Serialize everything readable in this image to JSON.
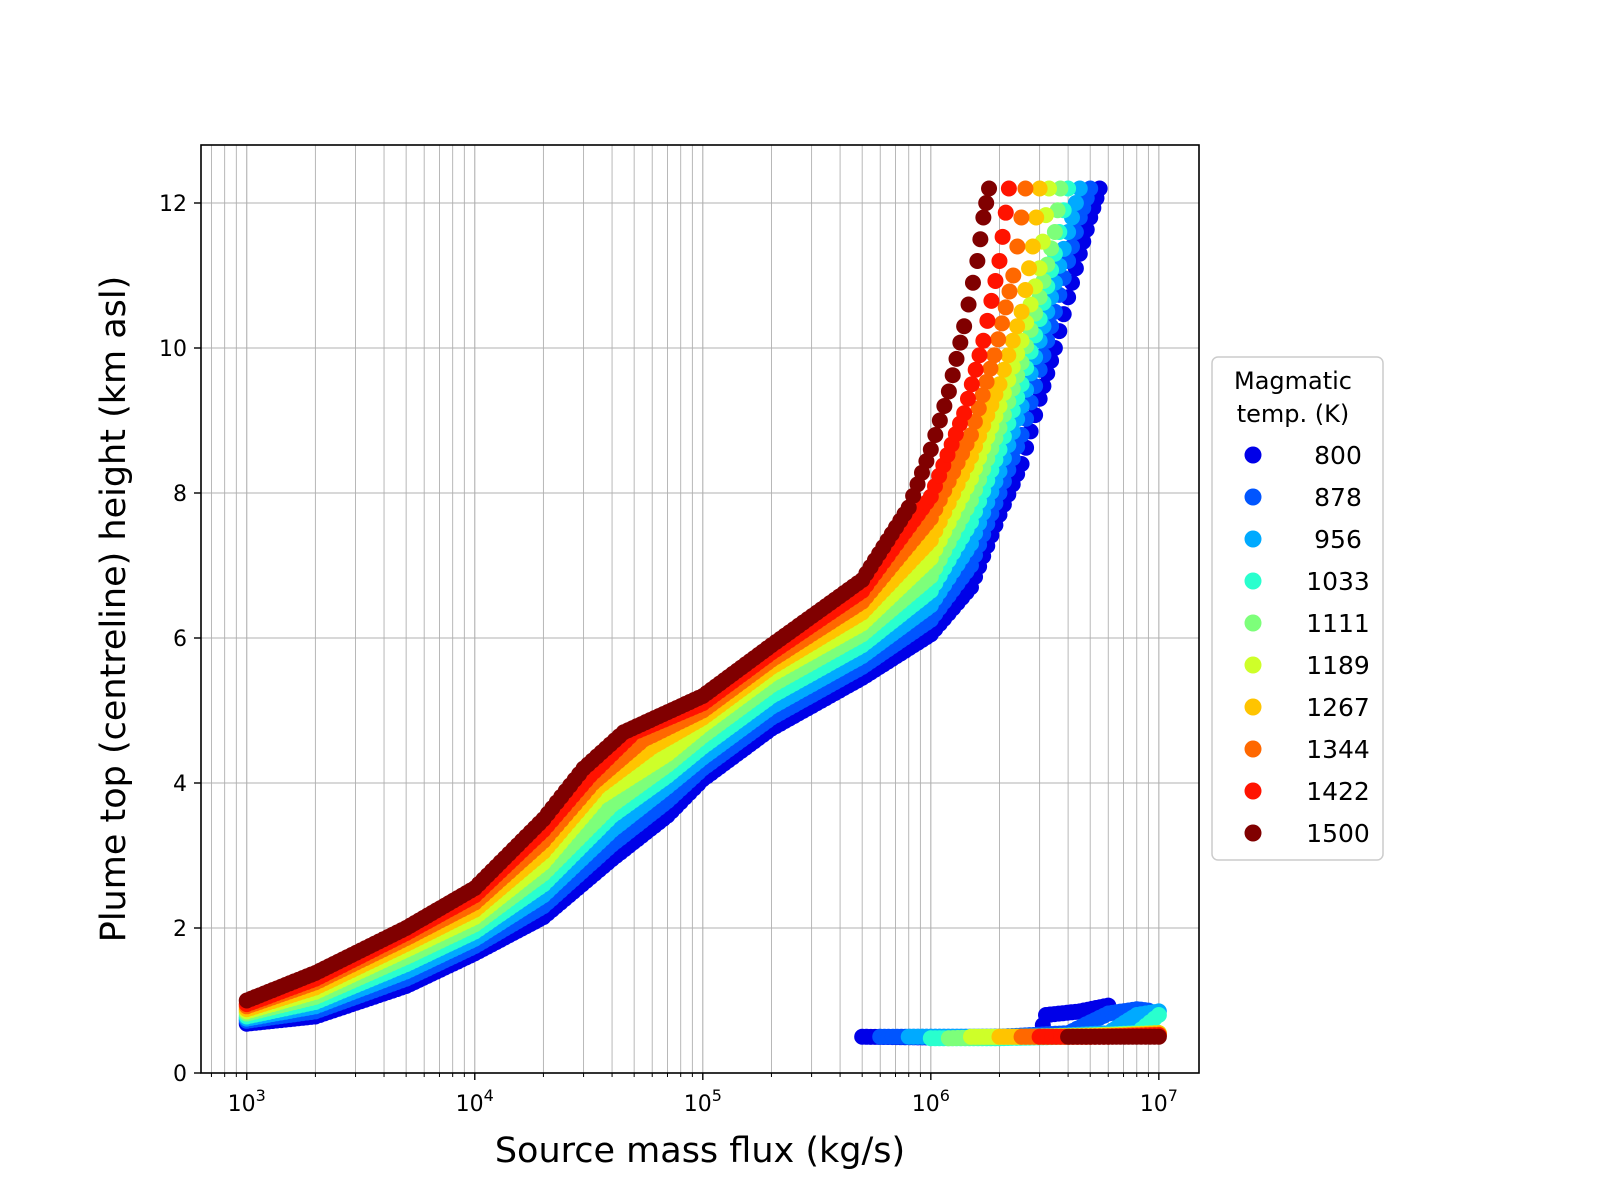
{
  "chart_data": {
    "type": "scatter",
    "xscale": "log",
    "xlabel": "Source mass flux (kg/s)",
    "ylabel": "Plume top (centreline) height (km asl)",
    "xlim": [
      630,
      15000000
    ],
    "ylim": [
      0,
      12.8
    ],
    "grid": true,
    "xticks": [
      {
        "value": 1000,
        "base": "10",
        "exp": "3"
      },
      {
        "value": 10000,
        "base": "10",
        "exp": "4"
      },
      {
        "value": 100000,
        "base": "10",
        "exp": "5"
      },
      {
        "value": 1000000,
        "base": "10",
        "exp": "6"
      },
      {
        "value": 10000000,
        "base": "10",
        "exp": "7"
      }
    ],
    "yticks": [
      0,
      2,
      4,
      6,
      8,
      10,
      12
    ],
    "legend": {
      "title_line1": "Magmatic",
      "title_line2": "temp. (K)",
      "placement": "right-outside"
    },
    "series": [
      {
        "name": "800",
        "color": "#0000e8",
        "points": [
          [
            1000,
            0.68
          ],
          [
            2000,
            0.78
          ],
          [
            5000,
            1.2
          ],
          [
            10000,
            1.65
          ],
          [
            20000,
            2.15
          ],
          [
            40000,
            2.95
          ],
          [
            70000,
            3.55
          ],
          [
            100000,
            4.05
          ],
          [
            200000,
            4.75
          ],
          [
            500000,
            5.45
          ],
          [
            1000000,
            6.05
          ],
          [
            1500000,
            6.7
          ],
          [
            2000000,
            7.7
          ],
          [
            2500000,
            8.4
          ],
          [
            3000000,
            9.3
          ],
          [
            3500000,
            10.0
          ],
          [
            4000000,
            10.7
          ],
          [
            4500000,
            11.3
          ],
          [
            5000000,
            11.8
          ],
          [
            5500000,
            12.2
          ]
        ],
        "low_points": [
          [
            500000,
            0.5
          ],
          [
            1000000,
            0.49
          ],
          [
            2000000,
            0.5
          ],
          [
            3000000,
            0.52
          ],
          [
            3200000,
            0.8
          ],
          [
            4500000,
            0.85
          ],
          [
            6000000,
            0.93
          ]
        ]
      },
      {
        "name": "878",
        "color": "#0055ff",
        "points": [
          [
            1000,
            0.72
          ],
          [
            2000,
            0.85
          ],
          [
            5000,
            1.3
          ],
          [
            10000,
            1.75
          ],
          [
            20000,
            2.3
          ],
          [
            40000,
            3.15
          ],
          [
            70000,
            3.75
          ],
          [
            100000,
            4.2
          ],
          [
            200000,
            4.9
          ],
          [
            500000,
            5.6
          ],
          [
            1000000,
            6.25
          ],
          [
            1500000,
            7.0
          ],
          [
            2000000,
            8.0
          ],
          [
            2500000,
            8.8
          ],
          [
            3000000,
            9.7
          ],
          [
            3500000,
            10.5
          ],
          [
            4000000,
            11.2
          ],
          [
            4500000,
            11.8
          ],
          [
            5000000,
            12.2
          ]
        ],
        "low_points": [
          [
            600000,
            0.5
          ],
          [
            1000000,
            0.5
          ],
          [
            2000000,
            0.5
          ],
          [
            4000000,
            0.55
          ],
          [
            6000000,
            0.82
          ],
          [
            8000000,
            0.88
          ],
          [
            9000000,
            0.86
          ]
        ]
      },
      {
        "name": "956",
        "color": "#00aaff",
        "points": [
          [
            1000,
            0.75
          ],
          [
            2000,
            0.92
          ],
          [
            5000,
            1.4
          ],
          [
            10000,
            1.85
          ],
          [
            20000,
            2.45
          ],
          [
            40000,
            3.35
          ],
          [
            70000,
            3.95
          ],
          [
            100000,
            4.35
          ],
          [
            200000,
            5.05
          ],
          [
            500000,
            5.75
          ],
          [
            1000000,
            6.45
          ],
          [
            1500000,
            7.3
          ],
          [
            2000000,
            8.3
          ],
          [
            2500000,
            9.2
          ],
          [
            3000000,
            10.1
          ],
          [
            3500000,
            10.9
          ],
          [
            4000000,
            11.6
          ],
          [
            4500000,
            12.2
          ]
        ],
        "low_points": [
          [
            800000,
            0.5
          ],
          [
            1500000,
            0.5
          ],
          [
            3000000,
            0.5
          ],
          [
            6000000,
            0.55
          ],
          [
            8000000,
            0.8
          ],
          [
            10000000,
            0.85
          ]
        ]
      },
      {
        "name": "1033",
        "color": "#29ffce",
        "points": [
          [
            1000,
            0.78
          ],
          [
            2000,
            0.98
          ],
          [
            5000,
            1.5
          ],
          [
            10000,
            1.95
          ],
          [
            20000,
            2.6
          ],
          [
            40000,
            3.55
          ],
          [
            70000,
            4.1
          ],
          [
            100000,
            4.5
          ],
          [
            200000,
            5.2
          ],
          [
            500000,
            5.9
          ],
          [
            1000000,
            6.65
          ],
          [
            1500000,
            7.6
          ],
          [
            2000000,
            8.6
          ],
          [
            2500000,
            9.5
          ],
          [
            3000000,
            10.4
          ],
          [
            3500000,
            11.3
          ],
          [
            4000000,
            12.2
          ]
        ],
        "low_points": [
          [
            1000000,
            0.48
          ],
          [
            2000000,
            0.48
          ],
          [
            4000000,
            0.5
          ],
          [
            8000000,
            0.55
          ],
          [
            10000000,
            0.8
          ]
        ]
      },
      {
        "name": "1111",
        "color": "#7dff7a",
        "points": [
          [
            1000,
            0.82
          ],
          [
            2000,
            1.05
          ],
          [
            5000,
            1.6
          ],
          [
            10000,
            2.05
          ],
          [
            20000,
            2.75
          ],
          [
            40000,
            3.7
          ],
          [
            70000,
            4.25
          ],
          [
            100000,
            4.65
          ],
          [
            200000,
            5.35
          ],
          [
            500000,
            6.05
          ],
          [
            1000000,
            6.85
          ],
          [
            1500000,
            7.9
          ],
          [
            2000000,
            8.9
          ],
          [
            2500000,
            9.8
          ],
          [
            3000000,
            10.7
          ],
          [
            3500000,
            11.6
          ],
          [
            3700000,
            12.2
          ]
        ],
        "low_points": [
          [
            1200000,
            0.48
          ],
          [
            2500000,
            0.5
          ],
          [
            5000000,
            0.52
          ],
          [
            10000000,
            0.55
          ]
        ]
      },
      {
        "name": "1189",
        "color": "#ceff29",
        "points": [
          [
            1000,
            0.85
          ],
          [
            2000,
            1.12
          ],
          [
            5000,
            1.7
          ],
          [
            10000,
            2.15
          ],
          [
            20000,
            2.9
          ],
          [
            35000,
            3.8
          ],
          [
            70000,
            4.4
          ],
          [
            100000,
            4.8
          ],
          [
            200000,
            5.5
          ],
          [
            500000,
            6.2
          ],
          [
            1000000,
            7.1
          ],
          [
            1500000,
            8.2
          ],
          [
            2000000,
            9.2
          ],
          [
            2500000,
            10.1
          ],
          [
            3000000,
            11.1
          ],
          [
            3300000,
            12.2
          ]
        ],
        "low_points": [
          [
            1500000,
            0.5
          ],
          [
            3000000,
            0.5
          ],
          [
            6000000,
            0.52
          ],
          [
            10000000,
            0.55
          ]
        ]
      },
      {
        "name": "1267",
        "color": "#ffc400",
        "points": [
          [
            1000,
            0.88
          ],
          [
            2000,
            1.18
          ],
          [
            5000,
            1.78
          ],
          [
            10000,
            2.25
          ],
          [
            20000,
            3.05
          ],
          [
            35000,
            3.95
          ],
          [
            60000,
            4.5
          ],
          [
            100000,
            4.9
          ],
          [
            200000,
            5.6
          ],
          [
            500000,
            6.35
          ],
          [
            1000000,
            7.35
          ],
          [
            1500000,
            8.5
          ],
          [
            2000000,
            9.5
          ],
          [
            2500000,
            10.5
          ],
          [
            2800000,
            11.4
          ],
          [
            3000000,
            12.2
          ]
        ],
        "low_points": [
          [
            2000000,
            0.5
          ],
          [
            4000000,
            0.5
          ],
          [
            7000000,
            0.52
          ],
          [
            10000000,
            0.55
          ]
        ]
      },
      {
        "name": "1344",
        "color": "#ff6800",
        "points": [
          [
            1000,
            0.92
          ],
          [
            2000,
            1.25
          ],
          [
            5000,
            1.86
          ],
          [
            10000,
            2.35
          ],
          [
            20000,
            3.2
          ],
          [
            33000,
            4.0
          ],
          [
            55000,
            4.6
          ],
          [
            100000,
            5.0
          ],
          [
            200000,
            5.7
          ],
          [
            500000,
            6.5
          ],
          [
            1000000,
            7.65
          ],
          [
            1500000,
            8.8
          ],
          [
            1900000,
            9.9
          ],
          [
            2300000,
            11.0
          ],
          [
            2600000,
            12.2
          ]
        ],
        "low_points": [
          [
            2500000,
            0.5
          ],
          [
            5000000,
            0.5
          ],
          [
            8000000,
            0.52
          ],
          [
            10000000,
            0.53
          ]
        ]
      },
      {
        "name": "1422",
        "color": "#ff1300",
        "points": [
          [
            1000,
            0.95
          ],
          [
            2000,
            1.3
          ],
          [
            5000,
            1.93
          ],
          [
            10000,
            2.45
          ],
          [
            20000,
            3.35
          ],
          [
            32000,
            4.1
          ],
          [
            50000,
            4.7
          ],
          [
            100000,
            5.1
          ],
          [
            200000,
            5.8
          ],
          [
            500000,
            6.65
          ],
          [
            1000000,
            7.95
          ],
          [
            1400000,
            9.1
          ],
          [
            1700000,
            10.1
          ],
          [
            2000000,
            11.2
          ],
          [
            2200000,
            12.2
          ]
        ],
        "low_points": [
          [
            3000000,
            0.5
          ],
          [
            6000000,
            0.5
          ],
          [
            10000000,
            0.52
          ]
        ]
      },
      {
        "name": "1500",
        "color": "#800000",
        "points": [
          [
            1000,
            1.0
          ],
          [
            2000,
            1.38
          ],
          [
            5000,
            2.0
          ],
          [
            10000,
            2.55
          ],
          [
            20000,
            3.5
          ],
          [
            30000,
            4.2
          ],
          [
            45000,
            4.7
          ],
          [
            100000,
            5.2
          ],
          [
            200000,
            5.9
          ],
          [
            500000,
            6.8
          ],
          [
            800000,
            7.8
          ],
          [
            1000000,
            8.6
          ],
          [
            1200000,
            9.4
          ],
          [
            1400000,
            10.3
          ],
          [
            1600000,
            11.2
          ],
          [
            1700000,
            11.8
          ],
          [
            1800000,
            12.2
          ]
        ],
        "low_points": [
          [
            4000000,
            0.5
          ],
          [
            6000000,
            0.5
          ],
          [
            8000000,
            0.5
          ],
          [
            10000000,
            0.5
          ]
        ]
      }
    ]
  }
}
